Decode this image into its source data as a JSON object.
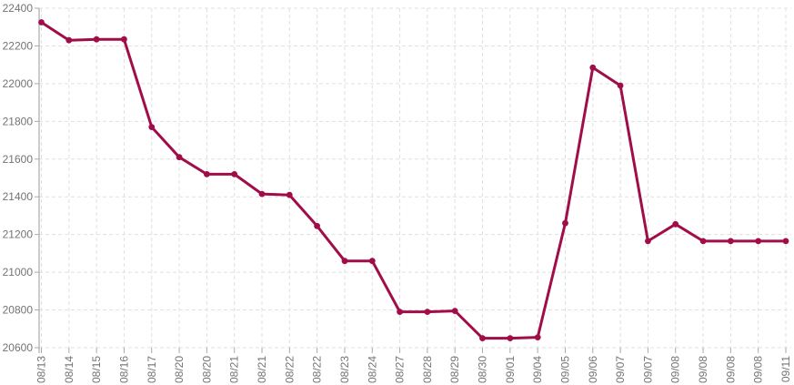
{
  "chart_data": {
    "type": "line",
    "title": "",
    "xlabel": "",
    "ylabel": "",
    "x_labels": [
      "08/13",
      "08/14",
      "08/15",
      "08/16",
      "08/17",
      "08/20",
      "08/20",
      "08/21",
      "08/21",
      "08/22",
      "08/22",
      "08/23",
      "08/24",
      "08/27",
      "08/28",
      "08/29",
      "08/30",
      "09/01",
      "09/04",
      "09/05",
      "09/06",
      "09/07",
      "09/07",
      "09/08",
      "09/08",
      "09/08",
      "09/08",
      "09/11"
    ],
    "values": [
      22325,
      22230,
      22235,
      22235,
      21770,
      21610,
      21520,
      21520,
      21415,
      21410,
      21245,
      21060,
      21060,
      20790,
      20790,
      20795,
      20650,
      20650,
      20655,
      21260,
      22085,
      21990,
      21165,
      21255,
      21165,
      21165,
      21165,
      21165
    ],
    "y_ticks": [
      22400,
      22200,
      22000,
      21800,
      21600,
      21400,
      21200,
      21000,
      20800,
      20600
    ],
    "ylim": [
      20600,
      22400
    ],
    "grid": true,
    "legend": "none",
    "marker": "circle",
    "colors": {
      "line": "#A00D48",
      "marker": "#A00D48",
      "grid": "#E0E0E0",
      "axis": "#999999",
      "tick": "#AAAAAA",
      "label": "#737373",
      "background": "#FFFFFF"
    }
  }
}
